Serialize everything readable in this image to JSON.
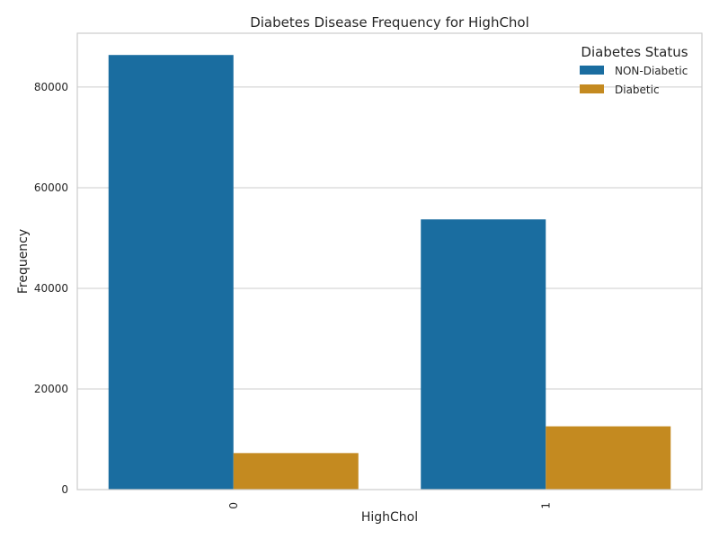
{
  "chart_data": {
    "type": "bar",
    "title": "Diabetes Disease Frequency for HighChol",
    "xlabel": "HighChol",
    "ylabel": "Frequency",
    "categories": [
      "0",
      "1"
    ],
    "series": [
      {
        "name": "NON-Diabetic",
        "values": [
          86377,
          53703
        ],
        "color": "#1a6da0"
      },
      {
        "name": "Diabetic",
        "values": [
          7256,
          12573
        ],
        "color": "#c48a20"
      }
    ],
    "ylim": [
      0,
      90700
    ],
    "yticks": [
      0,
      20000,
      40000,
      60000,
      80000
    ],
    "ytick_labels": [
      "0",
      "20000",
      "40000",
      "60000",
      "80000"
    ],
    "grid": true,
    "legend": {
      "title": "Diabetes Status",
      "placement": "top-right"
    }
  }
}
